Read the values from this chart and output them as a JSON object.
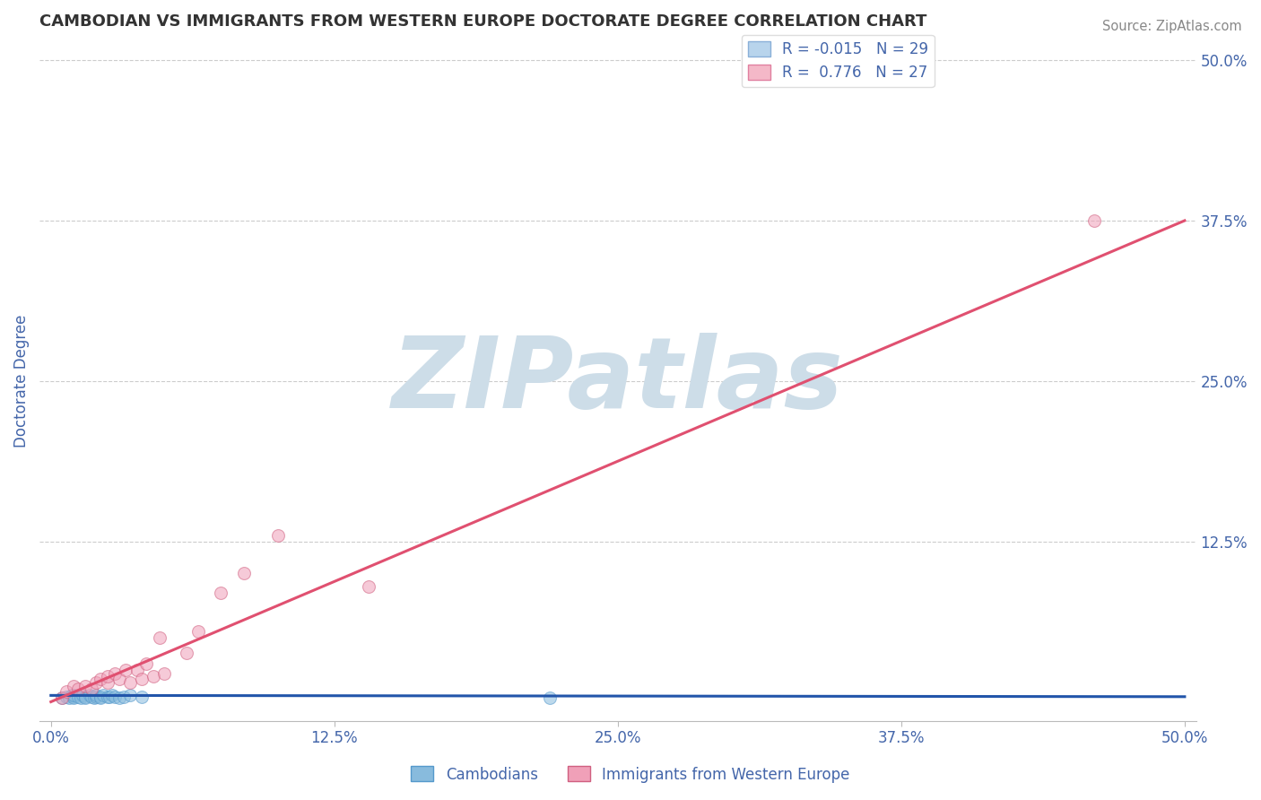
{
  "title": "CAMBODIAN VS IMMIGRANTS FROM WESTERN EUROPE DOCTORATE DEGREE CORRELATION CHART",
  "source": "Source: ZipAtlas.com",
  "xlabel": "",
  "ylabel": "Doctorate Degree",
  "xlim": [
    -0.005,
    0.505
  ],
  "ylim": [
    -0.015,
    0.515
  ],
  "xtick_labels": [
    "0.0%",
    "12.5%",
    "25.0%",
    "37.5%",
    "50.0%"
  ],
  "xtick_positions": [
    0.0,
    0.125,
    0.25,
    0.375,
    0.5
  ],
  "ytick_labels": [
    "12.5%",
    "25.0%",
    "37.5%",
    "50.0%"
  ],
  "ytick_positions": [
    0.125,
    0.25,
    0.375,
    0.5
  ],
  "right_ytick_labels": [
    "50.0%",
    "37.5%",
    "25.0%",
    "12.5%"
  ],
  "right_ytick_positions": [
    0.5,
    0.375,
    0.25,
    0.125
  ],
  "legend_entries": [
    {
      "label": "R = -0.015   N = 29",
      "facecolor": "#b8d4ec",
      "edgecolor": "#8ab0d8"
    },
    {
      "label": "R =  0.776   N = 27",
      "facecolor": "#f4b8c8",
      "edgecolor": "#e080a0"
    }
  ],
  "cambodian_color": "#88bbdd",
  "cambodian_edge": "#5599cc",
  "western_europe_color": "#f0a0b8",
  "western_europe_edge": "#d06080",
  "blue_line_color": "#2255aa",
  "pink_line_color": "#e05070",
  "watermark_text": "ZIPatlas",
  "watermark_color": "#cddde8",
  "background_color": "#ffffff",
  "grid_color": "#cccccc",
  "title_color": "#333333",
  "axis_label_color": "#4466aa",
  "tick_label_color": "#4466aa",
  "source_color": "#888888",
  "cambodian_x": [
    0.005,
    0.007,
    0.008,
    0.009,
    0.01,
    0.01,
    0.01,
    0.012,
    0.013,
    0.014,
    0.015,
    0.015,
    0.017,
    0.018,
    0.019,
    0.02,
    0.02,
    0.022,
    0.022,
    0.023,
    0.025,
    0.026,
    0.027,
    0.028,
    0.03,
    0.032,
    0.035,
    0.04,
    0.22
  ],
  "cambodian_y": [
    0.003,
    0.004,
    0.003,
    0.005,
    0.004,
    0.003,
    0.005,
    0.004,
    0.003,
    0.005,
    0.004,
    0.003,
    0.005,
    0.004,
    0.003,
    0.004,
    0.005,
    0.004,
    0.003,
    0.005,
    0.004,
    0.004,
    0.005,
    0.004,
    0.003,
    0.004,
    0.005,
    0.004,
    0.003
  ],
  "western_europe_x": [
    0.005,
    0.007,
    0.01,
    0.012,
    0.015,
    0.018,
    0.02,
    0.022,
    0.025,
    0.025,
    0.028,
    0.03,
    0.033,
    0.035,
    0.038,
    0.04,
    0.042,
    0.045,
    0.048,
    0.05,
    0.06,
    0.065,
    0.075,
    0.085,
    0.1,
    0.14,
    0.46
  ],
  "western_europe_y": [
    0.003,
    0.008,
    0.012,
    0.01,
    0.012,
    0.01,
    0.015,
    0.018,
    0.015,
    0.02,
    0.022,
    0.018,
    0.025,
    0.015,
    0.025,
    0.018,
    0.03,
    0.02,
    0.05,
    0.022,
    0.038,
    0.055,
    0.085,
    0.1,
    0.13,
    0.09,
    0.375
  ],
  "blue_line_x": [
    0.0,
    0.5
  ],
  "blue_line_y": [
    0.005,
    0.004
  ],
  "pink_line_x": [
    0.0,
    0.5
  ],
  "pink_line_y": [
    0.0,
    0.375
  ],
  "dot_size": 100,
  "dot_alpha": 0.55,
  "line_width": 2.2
}
